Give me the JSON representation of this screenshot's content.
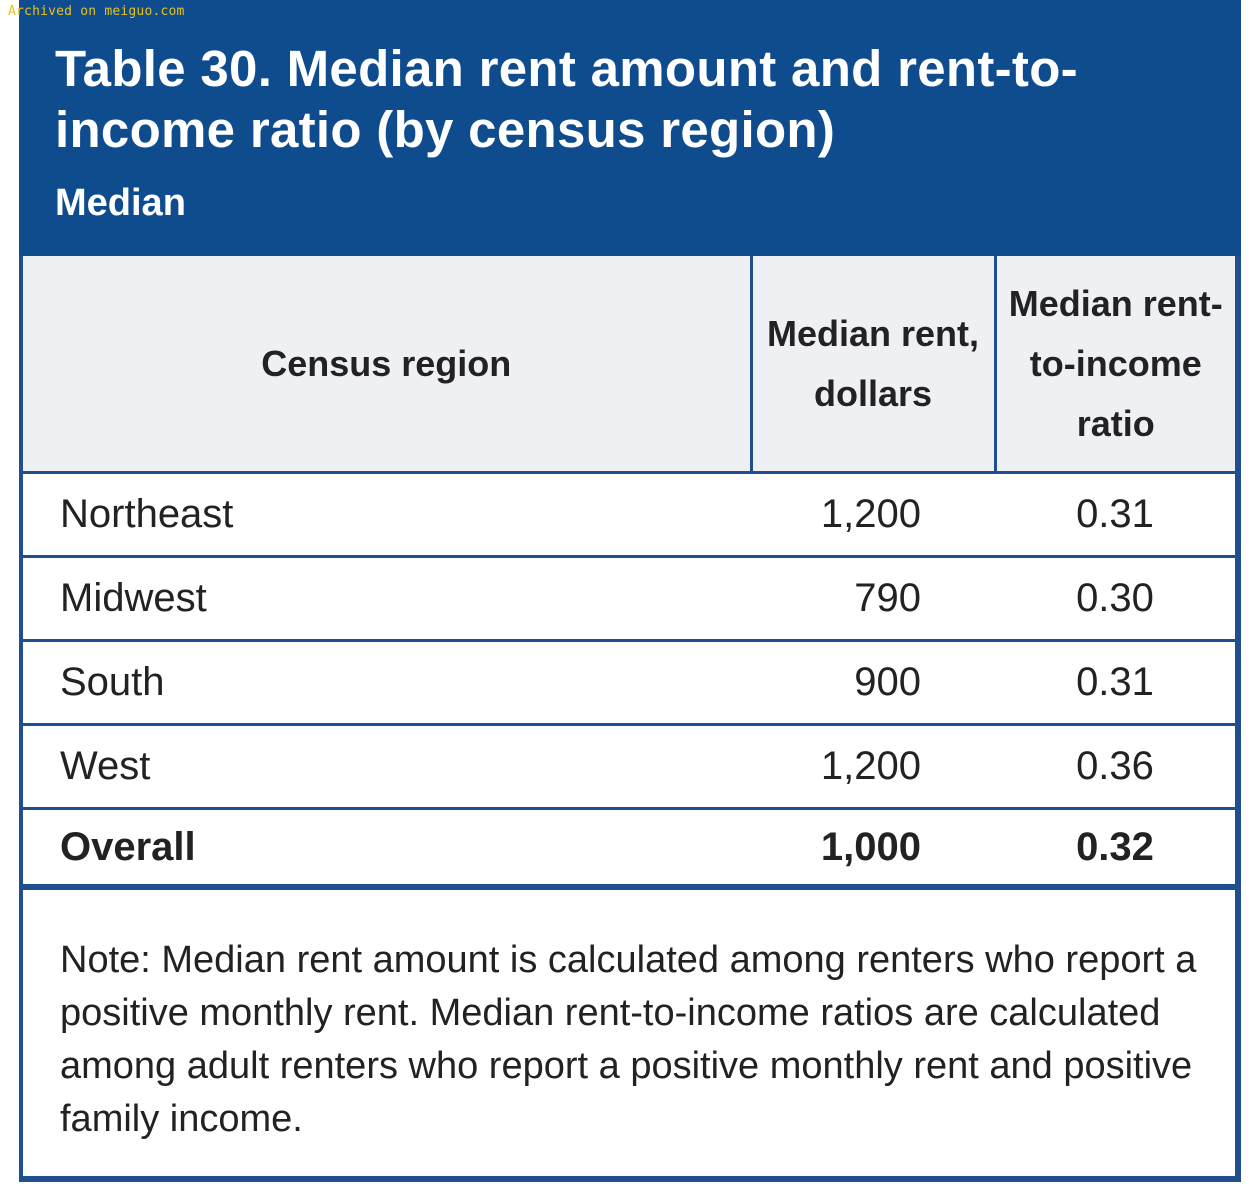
{
  "watermark": "Archived on meiguo.com",
  "table": {
    "title": "Table 30. Median rent amount and rent-to-income ratio (by census region)",
    "subtitle": "Median",
    "columns": [
      "Census region",
      "Median rent, dollars",
      "Median rent-to-income ratio"
    ],
    "rows": [
      {
        "region": "Northeast",
        "rent": "1,200",
        "ratio": "0.31"
      },
      {
        "region": "Midwest",
        "rent": "790",
        "ratio": "0.30"
      },
      {
        "region": "South",
        "rent": "900",
        "ratio": "0.31"
      },
      {
        "region": "West",
        "rent": "1,200",
        "ratio": "0.36"
      }
    ],
    "overall": {
      "region": "Overall",
      "rent": "1,000",
      "ratio": "0.32"
    },
    "note": "Note: Median rent amount is calculated among renters who report a positive monthly rent. Median rent-to-income ratios are calculated among adult renters who report a positive monthly rent and positive family income."
  },
  "colors": {
    "header_bg": "#0f4c8e",
    "border": "#1f4f8f",
    "column_header_bg": "#eef0f4",
    "watermark": "#e8c21a"
  }
}
